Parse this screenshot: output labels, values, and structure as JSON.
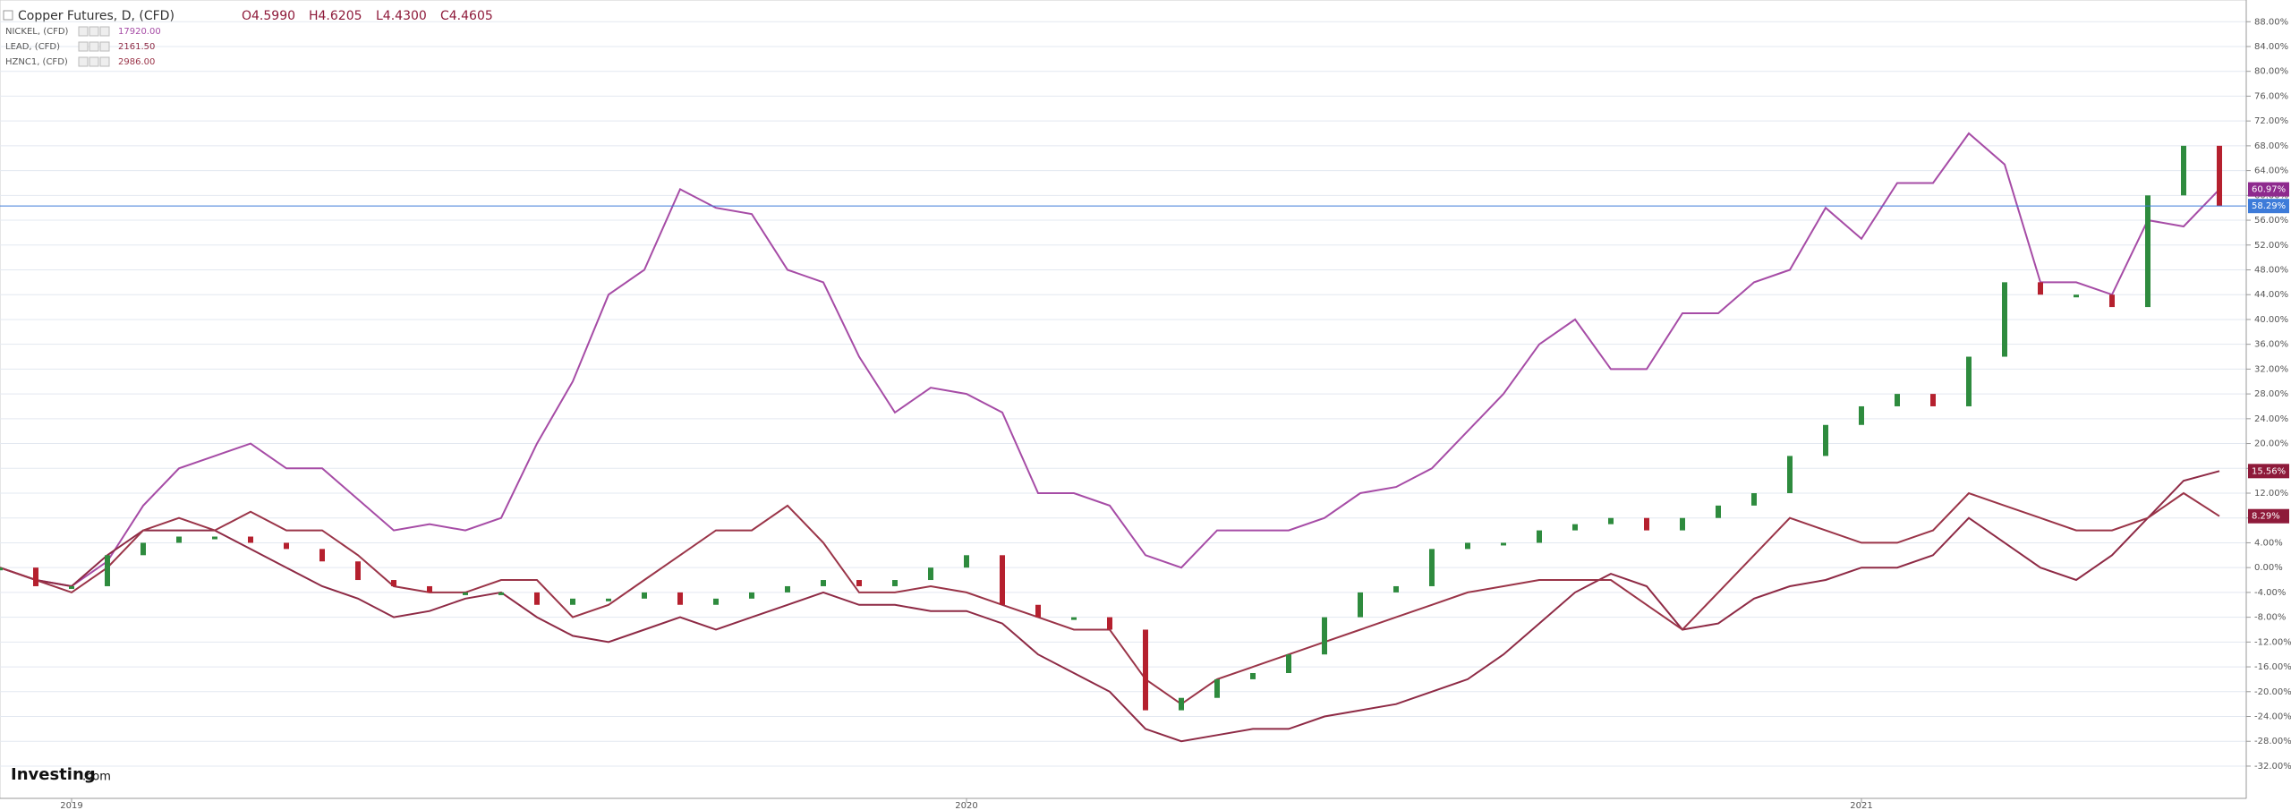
{
  "chart_data": {
    "type": "line",
    "ohlc": [
      "O4.5990",
      "H4.6205",
      "L4.4300",
      "C4.4605"
    ],
    "brand": "Investing",
    "brand_suffix": ".com",
    "xlim": [
      2018.92,
      2021.43
    ],
    "xticks": [
      2019,
      2020,
      2021
    ],
    "ylim": [
      -37.2,
      91.5
    ],
    "yticks": [
      {
        "value": 88,
        "label": "88.00%"
      },
      {
        "value": 84,
        "label": "84.00%"
      },
      {
        "value": 80,
        "label": "80.00%"
      },
      {
        "value": 76,
        "label": "76.00%"
      },
      {
        "value": 72,
        "label": "72.00%"
      },
      {
        "value": 68,
        "label": "68.00%"
      },
      {
        "value": 64,
        "label": "64.00%"
      },
      {
        "value": 60,
        "label": "60.00%"
      },
      {
        "value": 56,
        "label": "56.00%"
      },
      {
        "value": 52,
        "label": "52.00%"
      },
      {
        "value": 48,
        "label": "48.00%"
      },
      {
        "value": 44,
        "label": "44.00%"
      },
      {
        "value": 40,
        "label": "40.00%"
      },
      {
        "value": 36,
        "label": "36.00%"
      },
      {
        "value": 32,
        "label": "32.00%"
      },
      {
        "value": 28,
        "label": "28.00%"
      },
      {
        "value": 24,
        "label": "24.00%"
      },
      {
        "value": 20,
        "label": "20.00%"
      },
      {
        "value": 16,
        "label": "16.00%"
      },
      {
        "value": 12,
        "label": "12.00%"
      },
      {
        "value": 8,
        "label": "8.00%"
      },
      {
        "value": 4,
        "label": "4.00%"
      },
      {
        "value": 0,
        "label": "0.00%"
      },
      {
        "value": -4,
        "label": "-4.00%"
      },
      {
        "value": -8,
        "label": "-8.00%"
      },
      {
        "value": -12,
        "label": "-12.00%"
      },
      {
        "value": -16,
        "label": "-16.00%"
      },
      {
        "value": -20,
        "label": "-20.00%"
      },
      {
        "value": -24,
        "label": "-24.00%"
      },
      {
        "value": -28,
        "label": "-28.00%"
      },
      {
        "value": -32,
        "label": "-32.00%"
      }
    ],
    "grid": true,
    "x": [
      2018.92,
      2018.96,
      2019.0,
      2019.04,
      2019.08,
      2019.12,
      2019.16,
      2019.2,
      2019.24,
      2019.28,
      2019.32,
      2019.36,
      2019.4,
      2019.44,
      2019.48,
      2019.52,
      2019.56,
      2019.6,
      2019.64,
      2019.68,
      2019.72,
      2019.76,
      2019.8,
      2019.84,
      2019.88,
      2019.92,
      2019.96,
      2020.0,
      2020.04,
      2020.08,
      2020.12,
      2020.16,
      2020.2,
      2020.24,
      2020.28,
      2020.32,
      2020.36,
      2020.4,
      2020.44,
      2020.48,
      2020.52,
      2020.56,
      2020.6,
      2020.64,
      2020.68,
      2020.72,
      2020.76,
      2020.8,
      2020.84,
      2020.88,
      2020.92,
      2020.96,
      2021.0,
      2021.04,
      2021.08,
      2021.12,
      2021.16,
      2021.2,
      2021.24,
      2021.28,
      2021.32,
      2021.36,
      2021.4
    ],
    "series": [
      {
        "name": "Copper Futures, D, (CFD)",
        "style": "candle",
        "color": "#2e8b3e",
        "down_color": "#b5202e",
        "last_label": "58.29%",
        "label_color": "#3d7bd9",
        "values": [
          0,
          -3,
          -3,
          2,
          4,
          5,
          5,
          4,
          3,
          1,
          -2,
          -3,
          -4,
          -4,
          -4,
          -6,
          -5,
          -5,
          -4,
          -6,
          -5,
          -4,
          -3,
          -2,
          -3,
          -2,
          0,
          2,
          -6,
          -8,
          -8,
          -10,
          -23,
          -21,
          -18,
          -17,
          -14,
          -8,
          -4,
          -3,
          3,
          4,
          4,
          6,
          7,
          8,
          6,
          8,
          10,
          12,
          18,
          23,
          26,
          28,
          26,
          34,
          46,
          44,
          44,
          42,
          60,
          68,
          58.29
        ]
      },
      {
        "name": "NICKEL, (CFD)",
        "style": "line",
        "color": "#a64ca6",
        "legend_value": "17920.00",
        "last_label": "60.97%",
        "label_color": "#8e2a8e",
        "values": [
          0,
          -2,
          -3,
          1,
          10,
          16,
          18,
          20,
          16,
          16,
          11,
          6,
          7,
          6,
          8,
          20,
          30,
          44,
          48,
          61,
          58,
          57,
          48,
          46,
          34,
          25,
          29,
          28,
          25,
          12,
          12,
          10,
          2,
          0,
          6,
          6,
          6,
          8,
          12,
          13,
          16,
          22,
          28,
          36,
          40,
          32,
          32,
          41,
          41,
          46,
          48,
          58,
          53,
          62,
          62,
          70,
          65,
          46,
          46,
          44,
          56,
          55,
          60.97
        ]
      },
      {
        "name": "LEAD, (CFD)",
        "style": "line",
        "color": "#8e2a45",
        "legend_value": "2161.50",
        "last_label": "15.56%",
        "label_color": "#8e1a3a",
        "values": [
          0,
          -2,
          -3,
          2,
          6,
          6,
          6,
          3,
          0,
          -3,
          -5,
          -8,
          -7,
          -5,
          -4,
          -8,
          -11,
          -12,
          -10,
          -8,
          -10,
          -8,
          -6,
          -4,
          -6,
          -6,
          -7,
          -7,
          -9,
          -14,
          -17,
          -20,
          -26,
          -28,
          -27,
          -26,
          -26,
          -24,
          -23,
          -22,
          -20,
          -18,
          -14,
          -9,
          -4,
          -1,
          -3,
          -10,
          -9,
          -5,
          -3,
          -2,
          0,
          0,
          2,
          8,
          4,
          0,
          -2,
          2,
          8,
          14,
          15.56
        ]
      },
      {
        "name": "HZNC1, (CFD)",
        "style": "line",
        "color": "#9a3448",
        "legend_value": "2986.00",
        "last_label": "8.29%",
        "label_color": "#8e1a3a",
        "values": [
          0,
          -2,
          -4,
          0,
          6,
          8,
          6,
          9,
          6,
          6,
          2,
          -3,
          -4,
          -4,
          -2,
          -2,
          -8,
          -6,
          -2,
          2,
          6,
          6,
          10,
          4,
          -4,
          -4,
          -3,
          -4,
          -6,
          -8,
          -10,
          -10,
          -18,
          -22,
          -18,
          -16,
          -14,
          -12,
          -10,
          -8,
          -6,
          -4,
          -3,
          -2,
          -2,
          -2,
          -6,
          -10,
          -4,
          2,
          8,
          6,
          4,
          4,
          6,
          12,
          10,
          8,
          6,
          6,
          8,
          12,
          8.29
        ]
      }
    ]
  }
}
